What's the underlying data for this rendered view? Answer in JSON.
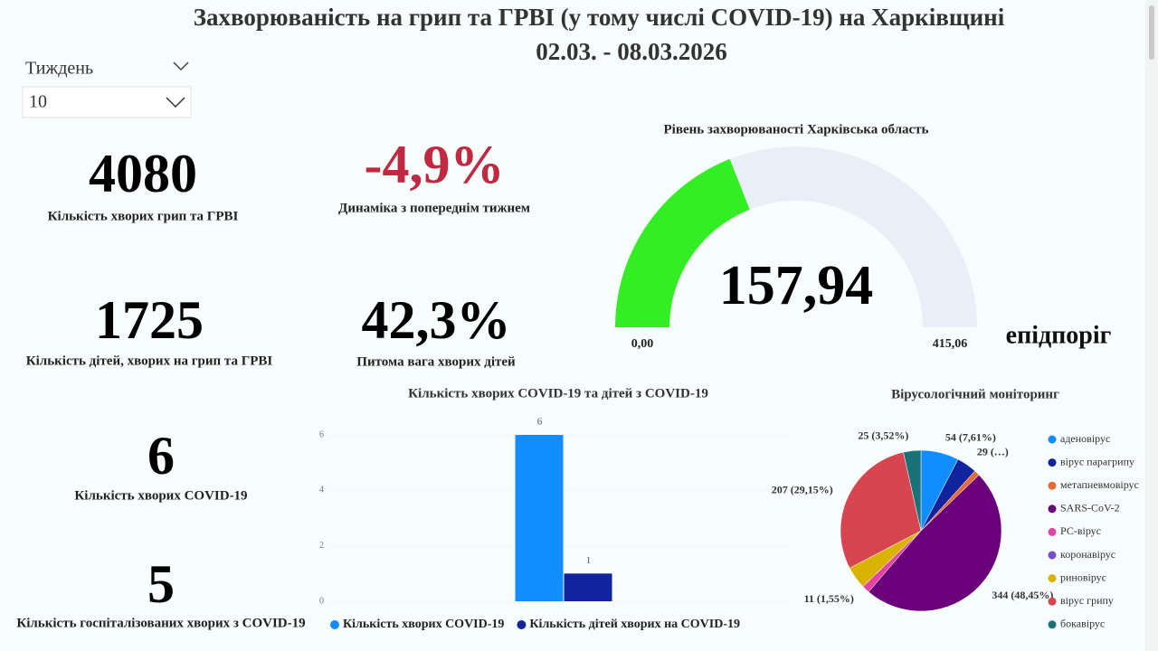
{
  "title": "Захворюваність на грип та ГРВІ (у тому числі COVID-19) на Харківщині",
  "subtitle": "02.03. - 08.03.2026",
  "filter": {
    "label": "Тиждень",
    "value": "10"
  },
  "kpis": [
    {
      "value": "4080",
      "label": "Кількість хворих грип та ГРВІ"
    },
    {
      "value": "-4,9%",
      "label": "Динаміка з попереднім тижнем"
    },
    {
      "value": "1725",
      "label": "Кількість дітей, хворих на грип та ГРВІ"
    },
    {
      "value": "42,3%",
      "label": "Питома вага хворих дітей"
    },
    {
      "value": "6",
      "label": "Кількість хворих COVID-19"
    },
    {
      "value": "5",
      "label": "Кількість госпіталізованих хворих з COVID-19"
    }
  ],
  "chart_data": [
    {
      "type": "gauge",
      "title": "Рівень захворюваності Харківська область",
      "value": 157.94,
      "value_label": "157,94",
      "min": {
        "value": 0,
        "label": "0,00"
      },
      "max": {
        "value": 415.06,
        "label": "415,06"
      },
      "annotation": "епідпоріг",
      "color": "#33ee22",
      "track_color": "#e8eff9"
    },
    {
      "type": "bar",
      "title": "Кількість хворих COVID-19 та дітей з COVID-19",
      "categories": [
        null
      ],
      "series": [
        {
          "name": "Кількість хворих COVID-19",
          "color": "#118dff",
          "values": [
            6
          ]
        },
        {
          "name": "Кількість дітей хворих на COVID-19",
          "color": "#12239e",
          "values": [
            1
          ]
        }
      ],
      "ylim": [
        0,
        6
      ],
      "yticks": [
        0,
        2,
        4,
        6
      ],
      "grid": true,
      "data_labels": true
    },
    {
      "type": "pie",
      "title": "Вірусологічний моніторинг",
      "categories": [
        "аденовірус",
        "вірус парагрипу",
        "метапневмовірус",
        "SARS-CoV-2",
        "РС-вірус",
        "коронавірус",
        "риновірус",
        "вірус грипу",
        "бокавірус"
      ],
      "values": [
        54,
        29,
        8,
        344,
        11,
        0,
        32,
        207,
        25
      ],
      "value_labels": [
        "54 (7,61%)",
        "29 (…)",
        null,
        "344 (48,45%)",
        "11 (1,55%)",
        null,
        null,
        "207 (29,15%)",
        "25 (3,52%)"
      ],
      "colors": [
        "#118dff",
        "#12239e",
        "#e66c37",
        "#6b007b",
        "#e044a7",
        "#744ec2",
        "#d9b300",
        "#d64550",
        "#197278"
      ]
    }
  ]
}
